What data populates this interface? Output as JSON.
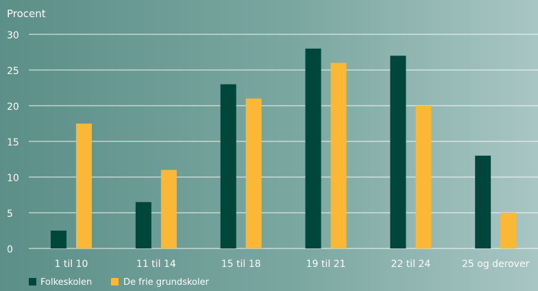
{
  "chart_data": {
    "type": "bar",
    "ylabel": "Procent",
    "xlabel": "",
    "ylim": [
      0,
      30
    ],
    "yticks": [
      "0",
      "5",
      "10",
      "15",
      "20",
      "25",
      "30"
    ],
    "categories": [
      "1 til 10",
      "11 til 14",
      "15 til 18",
      "19 til 21",
      "22 til 24",
      "25 og derover"
    ],
    "series": [
      {
        "name": "Folkeskolen",
        "values": [
          2.5,
          6.5,
          23,
          28,
          27,
          13
        ]
      },
      {
        "name": "De frie grundskoler",
        "values": [
          17.5,
          11,
          21,
          26,
          20,
          5
        ]
      }
    ],
    "grid": true,
    "legend": "bottom-left"
  },
  "colors": {
    "Folkeskolen": "#00463b",
    "De frie grundskoler": "#fbb836",
    "grid": "#ffffff"
  }
}
